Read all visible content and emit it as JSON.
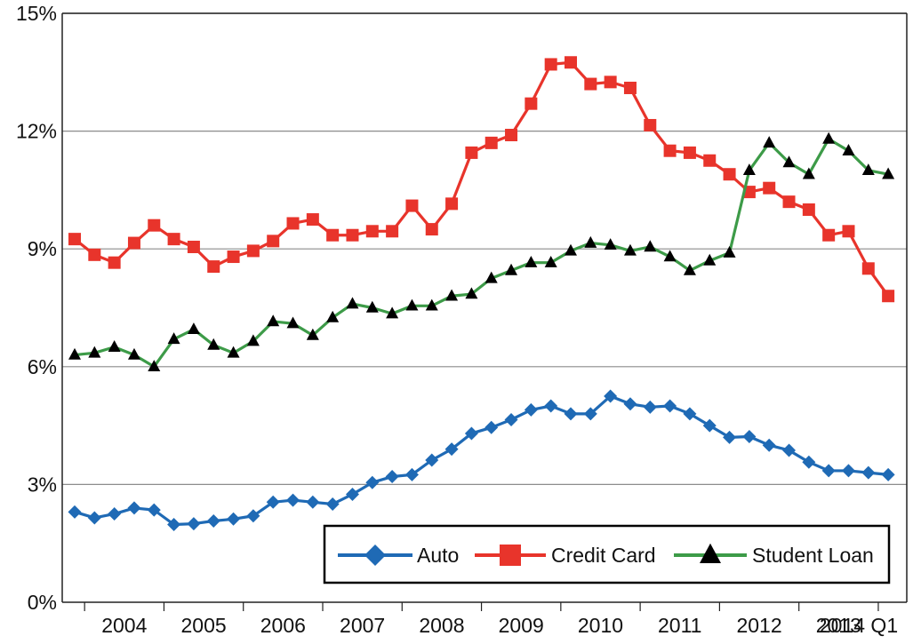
{
  "chart_data": {
    "type": "line",
    "title": "",
    "xlabel": "",
    "ylabel": "",
    "ylim": [
      0,
      15
    ],
    "y_ticks": [
      0,
      3,
      6,
      9,
      12,
      15
    ],
    "y_tick_labels": [
      "0%",
      "3%",
      "6%",
      "9%",
      "12%",
      "15%"
    ],
    "x_tick_labels": [
      "2004",
      "2005",
      "2006",
      "2007",
      "2008",
      "2009",
      "2010",
      "2011",
      "2012",
      "2013",
      "2014 Q1"
    ],
    "x": [
      "2003 Q4",
      "2004 Q1",
      "2004 Q2",
      "2004 Q3",
      "2004 Q4",
      "2005 Q1",
      "2005 Q2",
      "2005 Q3",
      "2005 Q4",
      "2006 Q1",
      "2006 Q2",
      "2006 Q3",
      "2006 Q4",
      "2007 Q1",
      "2007 Q2",
      "2007 Q3",
      "2007 Q4",
      "2008 Q1",
      "2008 Q2",
      "2008 Q3",
      "2008 Q4",
      "2009 Q1",
      "2009 Q2",
      "2009 Q3",
      "2009 Q4",
      "2010 Q1",
      "2010 Q2",
      "2010 Q3",
      "2010 Q4",
      "2011 Q1",
      "2011 Q2",
      "2011 Q3",
      "2011 Q4",
      "2012 Q1",
      "2012 Q2",
      "2012 Q3",
      "2012 Q4",
      "2013 Q1",
      "2013 Q2",
      "2013 Q3",
      "2013 Q4",
      "2014 Q1"
    ],
    "grid": "horizontal",
    "legend_position": "bottom-right",
    "series": [
      {
        "name": "Auto",
        "color": "#1f6ab5",
        "marker": "diamond",
        "values": [
          2.3,
          2.15,
          2.25,
          2.4,
          2.35,
          1.98,
          2.0,
          2.07,
          2.12,
          2.2,
          2.55,
          2.6,
          2.55,
          2.5,
          2.75,
          3.05,
          3.2,
          3.25,
          3.62,
          3.9,
          4.3,
          4.45,
          4.65,
          4.9,
          5.0,
          4.8,
          4.8,
          5.25,
          5.05,
          4.97,
          5.0,
          4.8,
          4.5,
          4.2,
          4.22,
          4.0,
          3.87,
          3.57,
          3.35,
          3.35,
          3.3,
          3.25
        ]
      },
      {
        "name": "Credit Card",
        "color": "#e8342b",
        "marker": "square",
        "values": [
          9.25,
          8.85,
          8.65,
          9.15,
          9.6,
          9.25,
          9.05,
          8.55,
          8.8,
          8.95,
          9.2,
          9.65,
          9.75,
          9.35,
          9.35,
          9.45,
          9.45,
          10.1,
          9.5,
          10.15,
          11.45,
          11.7,
          11.9,
          12.7,
          13.7,
          13.75,
          13.2,
          13.25,
          13.1,
          12.15,
          11.5,
          11.45,
          11.25,
          10.9,
          10.45,
          10.55,
          10.2,
          10.0,
          9.35,
          9.45,
          8.5,
          7.8
        ]
      },
      {
        "name": "Student Loan",
        "color": "#3d9b48",
        "marker": "triangle",
        "values": [
          6.3,
          6.35,
          6.5,
          6.3,
          6.0,
          6.7,
          6.95,
          6.55,
          6.35,
          6.65,
          7.15,
          7.1,
          6.8,
          7.25,
          7.6,
          7.5,
          7.35,
          7.55,
          7.55,
          7.8,
          7.85,
          8.25,
          8.45,
          8.65,
          8.65,
          8.95,
          9.15,
          9.1,
          8.95,
          9.05,
          8.8,
          8.45,
          8.7,
          8.9,
          11.0,
          11.7,
          11.2,
          10.9,
          11.8,
          11.5,
          11.0,
          10.9
        ]
      }
    ]
  }
}
